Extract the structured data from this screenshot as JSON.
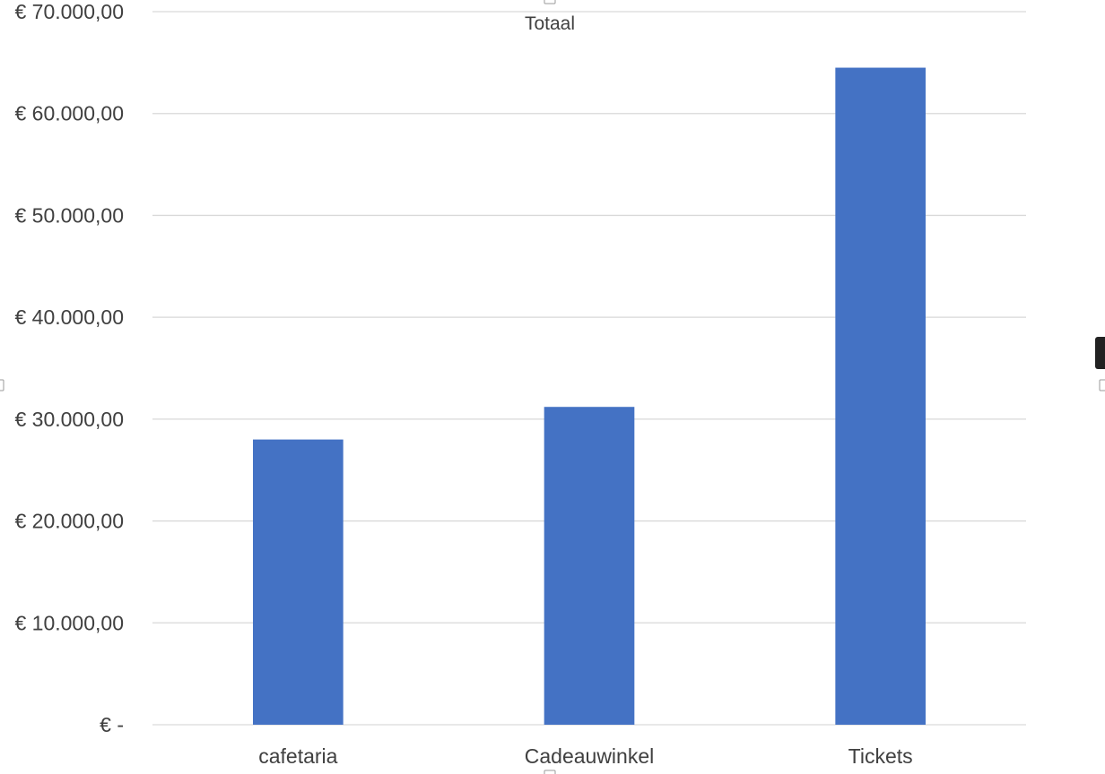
{
  "chart_data": {
    "type": "bar",
    "categories": [
      "cafetaria",
      "Cadeauwinkel",
      "Tickets"
    ],
    "series": [
      {
        "name": "Totaal",
        "values": [
          28000,
          31200,
          64500
        ]
      }
    ],
    "title": "",
    "xlabel": "",
    "ylabel": "",
    "ylim": [
      0,
      70000
    ],
    "y_ticks": [
      0,
      10000,
      20000,
      30000,
      40000,
      50000,
      60000,
      70000
    ],
    "y_tick_labels": [
      "€ -",
      "€ 10.000,00",
      "€ 20.000,00",
      "€ 30.000,00",
      "€ 40.000,00",
      "€ 50.000,00",
      "€ 60.000,00",
      "€ 70.000,00"
    ],
    "grid": true,
    "legend_position": "top",
    "bar_color": "#4472c4",
    "grid_color": "#d9d9d9",
    "text_color": "#404040"
  }
}
